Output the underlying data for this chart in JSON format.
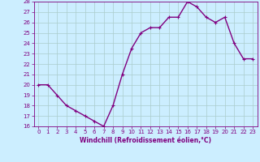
{
  "x": [
    0,
    1,
    2,
    3,
    4,
    5,
    6,
    7,
    8,
    9,
    10,
    11,
    12,
    13,
    14,
    15,
    16,
    17,
    18,
    19,
    20,
    21,
    22,
    23
  ],
  "y": [
    20,
    20,
    19,
    18,
    17.5,
    17,
    16.5,
    16,
    18,
    21,
    23.5,
    25,
    25.5,
    25.5,
    26.5,
    26.5,
    28,
    27.5,
    26.5,
    26,
    26.5,
    24,
    22.5,
    22.5
  ],
  "line_color": "#800080",
  "marker_color": "#800080",
  "bg_color": "#cceeff",
  "grid_color": "#aacccc",
  "xlabel": "Windchill (Refroidissement éolien,°C)",
  "ylim": [
    16,
    28
  ],
  "xlim_min": -0.5,
  "xlim_max": 23.5,
  "yticks": [
    16,
    17,
    18,
    19,
    20,
    21,
    22,
    23,
    24,
    25,
    26,
    27,
    28
  ],
  "xticks": [
    0,
    1,
    2,
    3,
    4,
    5,
    6,
    7,
    8,
    9,
    10,
    11,
    12,
    13,
    14,
    15,
    16,
    17,
    18,
    19,
    20,
    21,
    22,
    23
  ],
  "tick_color": "#800080",
  "label_color": "#800080",
  "line_width": 1.0,
  "marker_size": 2.5
}
